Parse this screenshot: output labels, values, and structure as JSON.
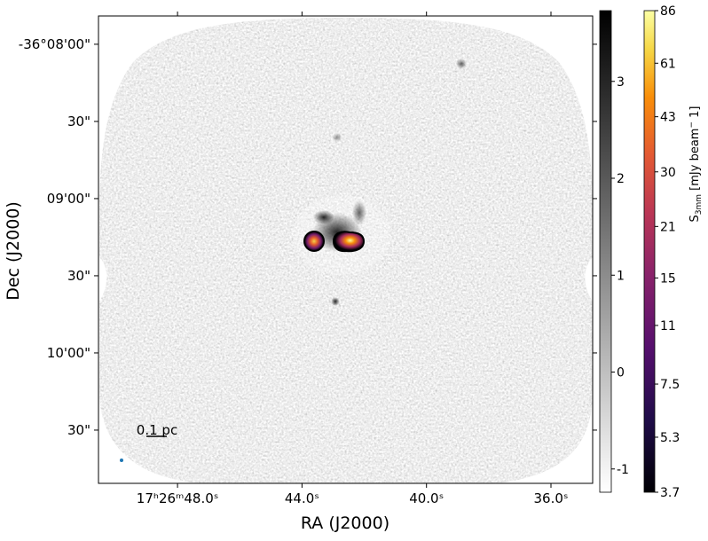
{
  "chart_data": {
    "type": "image",
    "x_label": "RA (J2000)",
    "y_label": "Dec (J2000)",
    "xlim": [
      50.54,
      34.66
    ],
    "xticks": [
      {
        "value": 48,
        "label": "17ʰ26ᵐ48.0ˢ"
      },
      {
        "value": 44,
        "label": "44.0ˢ"
      },
      {
        "value": 40,
        "label": "40.0ˢ"
      },
      {
        "value": 36,
        "label": "36.0ˢ"
      }
    ],
    "ylim": [
      170.7,
      -11
    ],
    "yticks": [
      {
        "value": 0,
        "label": "-36°08'00\""
      },
      {
        "value": 30,
        "label": "30\""
      },
      {
        "value": 60,
        "label": "09'00\""
      },
      {
        "value": 90,
        "label": "30\""
      },
      {
        "value": 120,
        "label": "10'00\""
      },
      {
        "value": 150,
        "label": "30\""
      }
    ],
    "scale_bar_label": "0.1 pc",
    "colorbars": [
      {
        "cmap": "gray_r",
        "scale": "linear",
        "lim": [
          -1.24,
          3.73
        ],
        "ticks": [
          -1,
          0,
          1,
          2,
          3
        ]
      },
      {
        "cmap": "inferno",
        "scale": "log",
        "lim": [
          3.7,
          86
        ],
        "ticks": [
          3.7,
          5.3,
          7.5,
          11,
          15,
          21,
          30,
          43,
          61,
          86
        ],
        "label_parts": [
          "S",
          "3mm",
          " [mJy beam",
          "−",
          " 1]"
        ]
      }
    ]
  }
}
